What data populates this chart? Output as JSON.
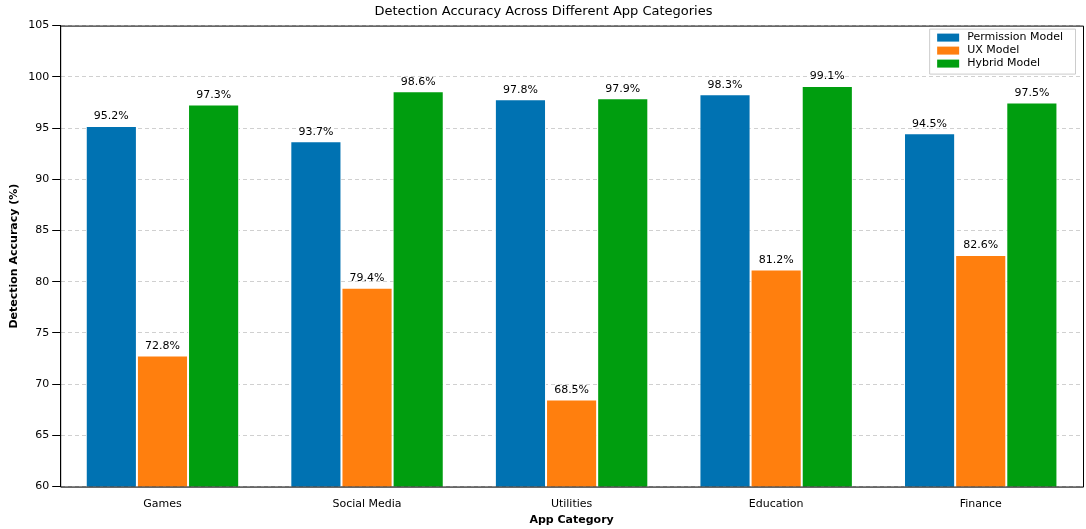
{
  "chart_data": {
    "type": "bar",
    "title": "Detection Accuracy Across Different App Categories",
    "xlabel": "App Category",
    "ylabel": "Detection Accuracy (%)",
    "categories": [
      "Games",
      "Social Media",
      "Utilities",
      "Education",
      "Finance"
    ],
    "series": [
      {
        "name": "Permission Model",
        "color": "#0072b2",
        "values": [
          95.2,
          93.7,
          97.8,
          98.3,
          94.5
        ],
        "value_labels": [
          "95.2%",
          "93.7%",
          "97.8%",
          "98.3%",
          "94.5%"
        ]
      },
      {
        "name": "UX Model",
        "color": "#ff7f0e",
        "values": [
          72.8,
          79.4,
          68.5,
          81.2,
          82.6
        ],
        "value_labels": [
          "72.8%",
          "79.4%",
          "68.5%",
          "81.2%",
          "82.6%"
        ]
      },
      {
        "name": "Hybrid Model",
        "color": "#009e0f",
        "values": [
          97.3,
          98.6,
          97.9,
          99.1,
          97.5
        ],
        "value_labels": [
          "97.3%",
          "98.6%",
          "97.9%",
          "99.1%",
          "97.5%"
        ]
      }
    ],
    "ylim": [
      60,
      105
    ],
    "yticks": [
      60,
      65,
      70,
      75,
      80,
      85,
      90,
      95,
      100,
      105
    ],
    "grid": "y",
    "legend": "top right"
  }
}
